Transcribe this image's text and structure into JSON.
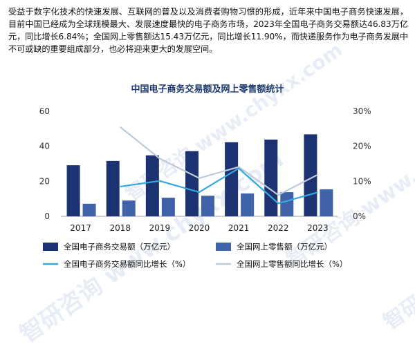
{
  "intro_text": "受益于数字化技术的快速发展、互联网的普及以及消费者购物习惯的形成，近年来中国电子商务快速发展，目前中国已经成为全球规模最大、发展速度最快的电子商务市场，2023年全国电子商务交易额达46.83万亿元，同比增长6.84%；全国网上零售额达15.43万亿元，同比增长11.90%，而快递服务作为电子商务发展中不可或缺的重要组成部分，也必将迎来更大的发展空间。",
  "watermark": "智研咨询 www.chyxx.com",
  "colors": {
    "bar_total": "#1d3270",
    "bar_online": "#3f62a8",
    "line_total": "#35a7de",
    "line_online": "#bccbd9"
  },
  "chart_data": {
    "type": "bar",
    "title": "中国电子商务交易额及网上零售额统计",
    "categories": [
      "2017",
      "2018",
      "2019",
      "2020",
      "2021",
      "2022",
      "2023"
    ],
    "y_left_ticks": [
      "0",
      "20",
      "40",
      "60"
    ],
    "y_right_ticks": [
      "0%",
      "10%",
      "20%",
      "30%"
    ],
    "ylim_left": [
      0,
      60
    ],
    "ylim_right": [
      0,
      30
    ],
    "series": [
      {
        "name": "全国电子商务交易额（万亿元）",
        "type": "bar",
        "axis": "left",
        "values": [
          29.16,
          31.63,
          34.81,
          37.21,
          42.3,
          43.83,
          46.83
        ]
      },
      {
        "name": "全国网上零售额（万亿元）",
        "type": "bar",
        "axis": "left",
        "values": [
          7.18,
          9.01,
          10.63,
          11.76,
          13.09,
          13.79,
          15.43
        ]
      },
      {
        "name": "全国电子商务交易额同比增长（%）",
        "type": "line",
        "axis": "right",
        "values": [
          null,
          8.5,
          10.1,
          6.9,
          13.7,
          3.7,
          6.84
        ]
      },
      {
        "name": "全国网上零售额同比增长（%）",
        "type": "line",
        "axis": "right",
        "values": [
          null,
          25.5,
          16.5,
          10.9,
          14.1,
          6.1,
          11.9
        ]
      }
    ]
  }
}
